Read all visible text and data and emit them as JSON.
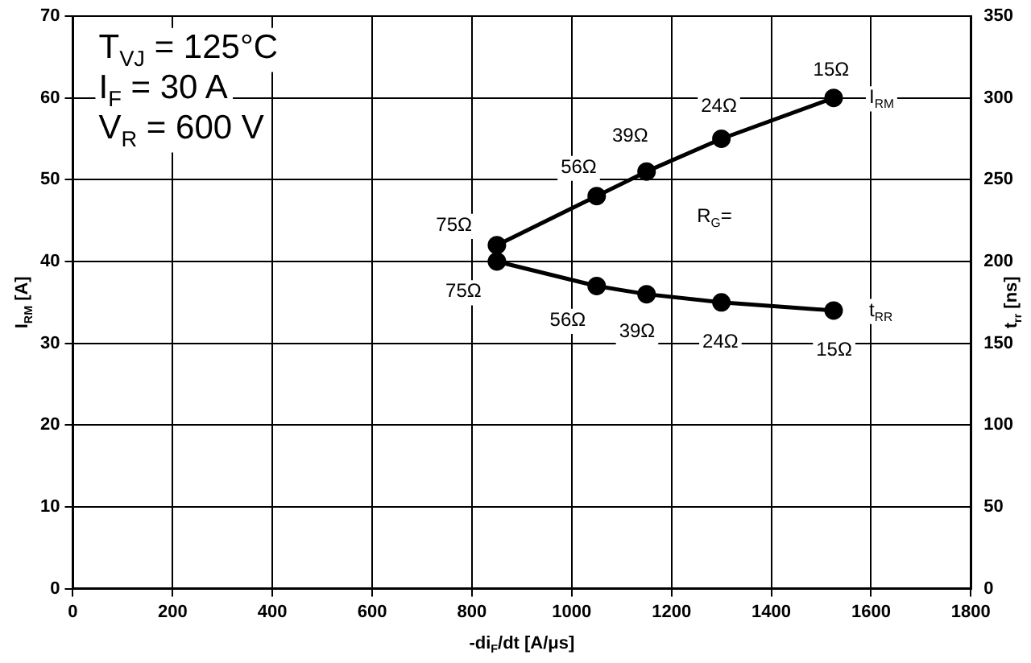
{
  "chart_data": {
    "type": "line",
    "xlabel": "-di$_{F}$/dt [A/μs]",
    "ylabel": "I$_{RM}$ [A]",
    "y2label": "t$_{rr}$ [ns]",
    "xlim": [
      0,
      1800
    ],
    "xticks": [
      0,
      200,
      400,
      600,
      800,
      1000,
      1200,
      1400,
      1600,
      1800
    ],
    "ylim": [
      0,
      70
    ],
    "yticks": [
      0,
      10,
      20,
      30,
      40,
      50,
      60,
      70
    ],
    "y2lim": [
      0,
      350
    ],
    "y2ticks": [
      0,
      50,
      100,
      150,
      200,
      250,
      300,
      350
    ],
    "grid": true,
    "legend": false,
    "marker": "circle",
    "line_style": "solid",
    "series": [
      {
        "name": "I$_{RM}$",
        "color": "#000000",
        "x": [
          850,
          1050,
          1150,
          1300,
          1525
        ],
        "values": [
          42,
          48,
          51,
          55,
          60
        ]
      },
      {
        "name": "t$_{RR}$",
        "color": "#000000",
        "axis": "y2",
        "x": [
          850,
          1050,
          1150,
          1300,
          1525
        ],
        "values": [
          200,
          185,
          180,
          175,
          170
        ]
      }
    ],
    "annotations": [
      "T$_{VJ}$ = 125°C",
      "I$_{F}$ = 30 A",
      "V$_{R}$ = 600 V",
      {
        "text": "R$_{G}$=",
        "x": 1286,
        "y": 45.5
      },
      {
        "text": "75Ω",
        "x": 764,
        "y": 44.4
      },
      {
        "text": "56Ω",
        "x": 1014,
        "y": 51.5
      },
      {
        "text": "39Ω",
        "x": 1117,
        "y": 55.3
      },
      {
        "text": "24Ω",
        "x": 1295,
        "y": 58.9
      },
      {
        "text": "15Ω",
        "x": 1520,
        "y": 63.4
      },
      {
        "text": "75Ω",
        "x": 783,
        "y": 36.3
      },
      {
        "text": "56Ω",
        "x": 992,
        "y": 32.8
      },
      {
        "text": "39Ω",
        "x": 1131,
        "y": 31.4
      },
      {
        "text": "24Ω",
        "x": 1298,
        "y": 30.1
      },
      {
        "text": "15Ω",
        "x": 1526,
        "y": 29.1
      }
    ]
  }
}
